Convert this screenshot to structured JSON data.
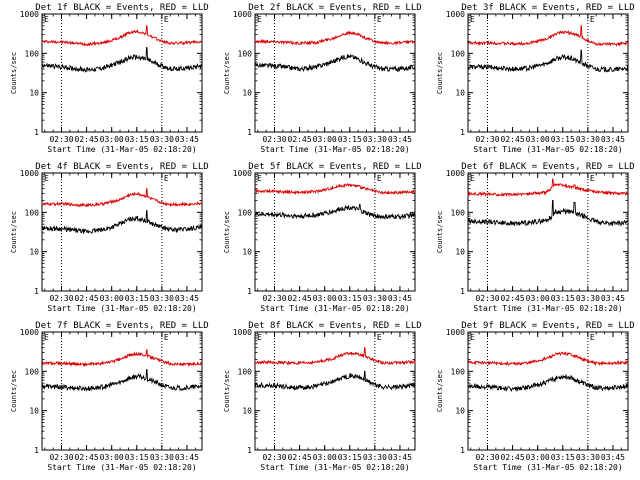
{
  "ylabel": "Counts/sec",
  "xlabel": "Start Time (31-Mar-05 02:18:20)",
  "x_ticks": [
    "02:30",
    "02:45",
    "03:00",
    "03:15",
    "03:30",
    "03:45"
  ],
  "y_ticks": [
    "1",
    "10",
    "100",
    "1000"
  ],
  "colors": {
    "events": "#000000",
    "lld": "#dd0000"
  },
  "chart_data": [
    {
      "type": "line",
      "title": "Det 1f BLACK = Events, RED = LLD",
      "y_scale": "log",
      "ylim": [
        1,
        1000
      ],
      "xlim": [
        "02:18:20",
        "03:54"
      ],
      "marker": "E",
      "series": [
        {
          "name": "RED = LLD",
          "x": [
            "02:18",
            "02:30",
            "02:45",
            "02:55",
            "03:05",
            "03:10",
            "03:15",
            "03:20",
            "03:25",
            "03:30",
            "03:35",
            "03:45",
            "03:54"
          ],
          "y": [
            200,
            195,
            170,
            185,
            250,
            330,
            360,
            320,
            250,
            205,
            180,
            185,
            200
          ]
        },
        {
          "name": "BLACK = Events",
          "x": [
            "02:18",
            "02:30",
            "02:45",
            "02:55",
            "03:05",
            "03:10",
            "03:15",
            "03:20",
            "03:25",
            "03:30",
            "03:35",
            "03:45",
            "03:54"
          ],
          "y": [
            50,
            45,
            38,
            42,
            60,
            75,
            80,
            72,
            58,
            48,
            40,
            42,
            50
          ]
        }
      ],
      "spikes": [
        {
          "x": "03:21",
          "lld": 500,
          "events": 140
        }
      ]
    },
    {
      "type": "line",
      "title": "Det 2f BLACK = Events, RED = LLD",
      "y_scale": "log",
      "ylim": [
        1,
        1000
      ],
      "xlim": [
        "02:18:20",
        "03:54"
      ],
      "marker": "E",
      "series": [
        {
          "name": "RED = LLD",
          "x": [
            "02:18",
            "02:30",
            "02:45",
            "02:55",
            "03:05",
            "03:10",
            "03:15",
            "03:20",
            "03:25",
            "03:30",
            "03:35",
            "03:45",
            "03:54"
          ],
          "y": [
            200,
            200,
            180,
            190,
            240,
            300,
            330,
            300,
            240,
            200,
            180,
            185,
            200
          ]
        },
        {
          "name": "BLACK = Events",
          "x": [
            "02:18",
            "02:30",
            "02:45",
            "02:55",
            "03:05",
            "03:10",
            "03:15",
            "03:20",
            "03:25",
            "03:30",
            "03:35",
            "03:45",
            "03:54"
          ],
          "y": [
            50,
            48,
            40,
            45,
            62,
            78,
            85,
            72,
            55,
            45,
            40,
            40,
            45
          ]
        }
      ],
      "spikes": []
    },
    {
      "type": "line",
      "title": "Det 3f BLACK = Events, RED = LLD",
      "y_scale": "log",
      "ylim": [
        1,
        1000
      ],
      "xlim": [
        "02:18:20",
        "03:54"
      ],
      "marker": "E",
      "series": [
        {
          "name": "RED = LLD",
          "x": [
            "02:18",
            "02:30",
            "02:45",
            "02:55",
            "03:05",
            "03:10",
            "03:15",
            "03:20",
            "03:25",
            "03:30",
            "03:35",
            "03:45",
            "03:54"
          ],
          "y": [
            180,
            185,
            175,
            180,
            230,
            300,
            350,
            330,
            270,
            210,
            170,
            170,
            180
          ]
        },
        {
          "name": "BLACK = Events",
          "x": [
            "02:18",
            "02:30",
            "02:45",
            "02:55",
            "03:05",
            "03:10",
            "03:15",
            "03:20",
            "03:25",
            "03:30",
            "03:35",
            "03:45",
            "03:54"
          ],
          "y": [
            45,
            45,
            40,
            42,
            55,
            70,
            80,
            75,
            60,
            48,
            40,
            38,
            42
          ]
        }
      ],
      "spikes": [
        {
          "x": "03:26",
          "lld": 500,
          "events": 120
        }
      ]
    },
    {
      "type": "line",
      "title": "Det 4f BLACK = Events, RED = LLD",
      "y_scale": "log",
      "ylim": [
        1,
        1000
      ],
      "xlim": [
        "02:18:20",
        "03:54"
      ],
      "marker": "E",
      "series": [
        {
          "name": "RED = LLD",
          "x": [
            "02:18",
            "02:30",
            "02:45",
            "02:55",
            "03:05",
            "03:10",
            "03:15",
            "03:20",
            "03:25",
            "03:30",
            "03:35",
            "03:45",
            "03:54"
          ],
          "y": [
            160,
            165,
            150,
            165,
            210,
            270,
            300,
            260,
            210,
            175,
            160,
            160,
            170
          ]
        },
        {
          "name": "BLACK = Events",
          "x": [
            "02:18",
            "02:30",
            "02:45",
            "02:55",
            "03:05",
            "03:10",
            "03:15",
            "03:20",
            "03:25",
            "03:30",
            "03:35",
            "03:45",
            "03:54"
          ],
          "y": [
            40,
            38,
            32,
            36,
            50,
            65,
            72,
            62,
            50,
            42,
            36,
            38,
            42
          ]
        }
      ],
      "spikes": [
        {
          "x": "03:21",
          "lld": 400,
          "events": 110
        }
      ]
    },
    {
      "type": "line",
      "title": "Det 5f BLACK = Events, RED = LLD",
      "y_scale": "log",
      "ylim": [
        1,
        1000
      ],
      "xlim": [
        "02:18:20",
        "03:54"
      ],
      "marker": "E",
      "series": [
        {
          "name": "RED = LLD",
          "x": [
            "02:18",
            "02:30",
            "02:45",
            "02:55",
            "03:05",
            "03:10",
            "03:15",
            "03:20",
            "03:25",
            "03:30",
            "03:35",
            "03:45",
            "03:54"
          ],
          "y": [
            350,
            340,
            320,
            340,
            420,
            480,
            500,
            460,
            390,
            340,
            310,
            320,
            340
          ]
        },
        {
          "name": "BLACK = Events",
          "x": [
            "02:18",
            "02:30",
            "02:45",
            "02:55",
            "03:05",
            "03:10",
            "03:15",
            "03:20",
            "03:25",
            "03:30",
            "03:35",
            "03:45",
            "03:54"
          ],
          "y": [
            90,
            88,
            80,
            85,
            105,
            125,
            135,
            115,
            95,
            82,
            76,
            78,
            85
          ]
        }
      ],
      "spikes": [
        {
          "x": "03:21",
          "lld": 480,
          "events": 160
        }
      ]
    },
    {
      "type": "line",
      "title": "Det 6f BLACK = Events, RED = LLD",
      "y_scale": "log",
      "ylim": [
        1,
        1000
      ],
      "xlim": [
        "02:18:20",
        "03:54"
      ],
      "marker": "E",
      "series": [
        {
          "name": "RED = LLD",
          "x": [
            "02:18",
            "02:30",
            "02:45",
            "02:55",
            "03:05",
            "03:08",
            "03:10",
            "03:15",
            "03:20",
            "03:25",
            "03:30",
            "03:35",
            "03:45",
            "03:54"
          ],
          "y": [
            300,
            290,
            280,
            300,
            320,
            400,
            520,
            480,
            440,
            400,
            360,
            330,
            310,
            300
          ]
        },
        {
          "name": "BLACK = Events",
          "x": [
            "02:18",
            "02:30",
            "02:45",
            "02:55",
            "03:05",
            "03:08",
            "03:10",
            "03:15",
            "03:20",
            "03:25",
            "03:30",
            "03:35",
            "03:45",
            "03:54"
          ],
          "y": [
            60,
            58,
            52,
            55,
            62,
            75,
            100,
            105,
            100,
            88,
            70,
            58,
            52,
            55
          ]
        }
      ],
      "spikes": [
        {
          "x": "03:09",
          "lld": 700,
          "events": 200
        },
        {
          "x": "03:22",
          "lld": 500,
          "events": 180
        }
      ]
    },
    {
      "type": "line",
      "title": "Det 7f BLACK = Events, RED = LLD",
      "y_scale": "log",
      "ylim": [
        1,
        1000
      ],
      "xlim": [
        "02:18:20",
        "03:54"
      ],
      "marker": "E",
      "series": [
        {
          "name": "RED = LLD",
          "x": [
            "02:18",
            "02:30",
            "02:45",
            "02:55",
            "03:05",
            "03:10",
            "03:15",
            "03:20",
            "03:25",
            "03:30",
            "03:35",
            "03:45",
            "03:54"
          ],
          "y": [
            160,
            160,
            150,
            160,
            200,
            250,
            280,
            260,
            220,
            180,
            155,
            150,
            160
          ]
        },
        {
          "name": "BLACK = Events",
          "x": [
            "02:18",
            "02:30",
            "02:45",
            "02:55",
            "03:05",
            "03:10",
            "03:15",
            "03:20",
            "03:25",
            "03:30",
            "03:35",
            "03:45",
            "03:54"
          ],
          "y": [
            42,
            40,
            36,
            40,
            52,
            66,
            75,
            68,
            55,
            45,
            38,
            38,
            42
          ]
        }
      ],
      "spikes": [
        {
          "x": "03:21",
          "lld": 350,
          "events": 110
        }
      ]
    },
    {
      "type": "line",
      "title": "Det 8f BLACK = Events, RED = LLD",
      "y_scale": "log",
      "ylim": [
        1,
        1000
      ],
      "xlim": [
        "02:18:20",
        "03:54"
      ],
      "marker": "E",
      "series": [
        {
          "name": "RED = LLD",
          "x": [
            "02:18",
            "02:30",
            "02:45",
            "02:55",
            "03:05",
            "03:10",
            "03:15",
            "03:20",
            "03:25",
            "03:30",
            "03:35",
            "03:45",
            "03:54"
          ],
          "y": [
            170,
            170,
            160,
            170,
            210,
            260,
            290,
            270,
            230,
            190,
            165,
            165,
            175
          ]
        },
        {
          "name": "BLACK = Events",
          "x": [
            "02:18",
            "02:30",
            "02:45",
            "02:55",
            "03:05",
            "03:10",
            "03:15",
            "03:20",
            "03:25",
            "03:30",
            "03:35",
            "03:45",
            "03:54"
          ],
          "y": [
            45,
            43,
            38,
            42,
            55,
            68,
            78,
            72,
            58,
            46,
            40,
            40,
            45
          ]
        }
      ],
      "spikes": [
        {
          "x": "03:24",
          "lld": 400,
          "events": 100
        }
      ]
    },
    {
      "type": "line",
      "title": "Det 9f BLACK = Events, RED = LLD",
      "y_scale": "log",
      "ylim": [
        1,
        1000
      ],
      "xlim": [
        "02:18:20",
        "03:54"
      ],
      "marker": "E",
      "series": [
        {
          "name": "RED = LLD",
          "x": [
            "02:18",
            "02:30",
            "02:45",
            "02:55",
            "03:05",
            "03:10",
            "03:15",
            "03:20",
            "03:25",
            "03:30",
            "03:35",
            "03:45",
            "03:54"
          ],
          "y": [
            170,
            165,
            155,
            165,
            210,
            260,
            290,
            270,
            220,
            180,
            160,
            160,
            170
          ]
        },
        {
          "name": "BLACK = Events",
          "x": [
            "02:18",
            "02:30",
            "02:45",
            "02:55",
            "03:05",
            "03:10",
            "03:15",
            "03:20",
            "03:25",
            "03:30",
            "03:35",
            "03:45",
            "03:54"
          ],
          "y": [
            42,
            40,
            35,
            40,
            52,
            65,
            75,
            70,
            55,
            45,
            38,
            38,
            42
          ]
        }
      ],
      "spikes": []
    }
  ]
}
